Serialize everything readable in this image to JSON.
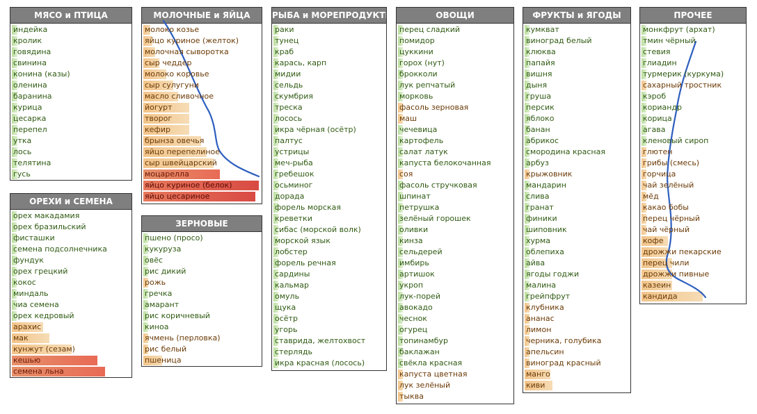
{
  "panels": [
    {
      "id": "meat",
      "title": "МЯСО и ПТИЦА",
      "items": [
        {
          "label": "индейка",
          "level": "g",
          "fill": 0.05
        },
        {
          "label": "кролик",
          "level": "g",
          "fill": 0.05
        },
        {
          "label": "говядина",
          "level": "g",
          "fill": 0.05
        },
        {
          "label": "свинина",
          "level": "g",
          "fill": 0.05
        },
        {
          "label": "конина (казы)",
          "level": "g",
          "fill": 0.05
        },
        {
          "label": "оленина",
          "level": "g",
          "fill": 0.05
        },
        {
          "label": "баранина",
          "level": "g",
          "fill": 0.05
        },
        {
          "label": "курица",
          "level": "g",
          "fill": 0.05
        },
        {
          "label": "цесарка",
          "level": "g",
          "fill": 0.05
        },
        {
          "label": "перепел",
          "level": "g",
          "fill": 0.05
        },
        {
          "label": "утка",
          "level": "g",
          "fill": 0.05
        },
        {
          "label": "лось",
          "level": "g",
          "fill": 0.05
        },
        {
          "label": "телятина",
          "level": "g",
          "fill": 0.05
        },
        {
          "label": "гусь",
          "level": "g",
          "fill": 0.05
        }
      ]
    },
    {
      "id": "nuts",
      "title": "ОРЕХИ и СЕМЕНА",
      "items": [
        {
          "label": "орех макадамия",
          "level": "g",
          "fill": 0.03
        },
        {
          "label": "орех бразильский",
          "level": "g",
          "fill": 0.03
        },
        {
          "label": "фисташки",
          "level": "g",
          "fill": 0.03
        },
        {
          "label": "семена подсолнечника",
          "level": "g",
          "fill": 0.03
        },
        {
          "label": "фундук",
          "level": "g",
          "fill": 0.03
        },
        {
          "label": "орех грецкий",
          "level": "g",
          "fill": 0.03
        },
        {
          "label": "кокос",
          "level": "g",
          "fill": 0.03
        },
        {
          "label": "миндаль",
          "level": "g",
          "fill": 0.03
        },
        {
          "label": "чиа семена",
          "level": "g",
          "fill": 0.03
        },
        {
          "label": "орех кедровый",
          "level": "g",
          "fill": 0.03
        },
        {
          "label": "арахис",
          "level": "y",
          "fill": 0.27
        },
        {
          "label": "мак",
          "level": "y",
          "fill": 0.32
        },
        {
          "label": "кунжут (сезам)",
          "level": "y",
          "fill": 0.51
        },
        {
          "label": "кешью",
          "level": "o",
          "fill": 0.73
        },
        {
          "label": "семена льна",
          "level": "o",
          "fill": 0.8
        }
      ]
    },
    {
      "id": "dairy",
      "title": "МОЛОЧНЫЕ и ЯЙЦА",
      "items": [
        {
          "label": "молоко козье",
          "level": "y",
          "fill": 0.06
        },
        {
          "label": "яйцо куриное (желток)",
          "level": "y",
          "fill": 0.08
        },
        {
          "label": "молочная сыворотка",
          "level": "y",
          "fill": 0.1
        },
        {
          "label": "сыр чеддер",
          "level": "y",
          "fill": 0.14
        },
        {
          "label": "молоко коровье",
          "level": "y",
          "fill": 0.2
        },
        {
          "label": "сыр сулугуни",
          "level": "y",
          "fill": 0.26
        },
        {
          "label": "масло сливочное",
          "level": "y",
          "fill": 0.3
        },
        {
          "label": "йогурт",
          "level": "y",
          "fill": 0.4
        },
        {
          "label": "творог",
          "level": "y",
          "fill": 0.4
        },
        {
          "label": "кефир",
          "level": "y",
          "fill": 0.4
        },
        {
          "label": "брынза овечья",
          "level": "y",
          "fill": 0.5
        },
        {
          "label": "яйцо перепелиное",
          "level": "y",
          "fill": 0.55
        },
        {
          "label": "сыр швейцарский",
          "level": "y",
          "fill": 0.61
        },
        {
          "label": "моцарелла",
          "level": "o",
          "fill": 0.66
        },
        {
          "label": "яйцо куриное (белок)",
          "level": "r",
          "fill": 1.0
        },
        {
          "label": "яйцо цесариное",
          "level": "r",
          "fill": 0.97
        }
      ]
    },
    {
      "id": "grains",
      "title": "ЗЕРНОВЫЕ",
      "items": [
        {
          "label": "пшено (просо)",
          "level": "g",
          "fill": 0.02
        },
        {
          "label": "кукуруза",
          "level": "g",
          "fill": 0.02
        },
        {
          "label": "овёс",
          "level": "g",
          "fill": 0.02
        },
        {
          "label": "рис дикий",
          "level": "g",
          "fill": 0.02
        },
        {
          "label": "рожь",
          "level": "y",
          "fill": 0.02
        },
        {
          "label": "гречка",
          "level": "g",
          "fill": 0.02
        },
        {
          "label": "амарант",
          "level": "g",
          "fill": 0.02
        },
        {
          "label": "рис коричневый",
          "level": "g",
          "fill": 0.02
        },
        {
          "label": "киноа",
          "level": "g",
          "fill": 0.02
        },
        {
          "label": "ячмень (перловка)",
          "level": "y",
          "fill": 0.02
        },
        {
          "label": "рис белый",
          "level": "y",
          "fill": 0.02
        },
        {
          "label": "пшеница",
          "level": "y",
          "fill": 0.16
        }
      ]
    },
    {
      "id": "fish",
      "title": "РЫБА и МОРЕПРОДУКТЫ",
      "items": [
        {
          "label": "раки",
          "level": "g",
          "fill": 0.02
        },
        {
          "label": "тунец",
          "level": "g",
          "fill": 0.02
        },
        {
          "label": "краб",
          "level": "g",
          "fill": 0.02
        },
        {
          "label": "карась, карп",
          "level": "g",
          "fill": 0.02
        },
        {
          "label": "мидии",
          "level": "g",
          "fill": 0.02
        },
        {
          "label": "сельдь",
          "level": "g",
          "fill": 0.02
        },
        {
          "label": "скумбрия",
          "level": "g",
          "fill": 0.02
        },
        {
          "label": "треска",
          "level": "g",
          "fill": 0.02
        },
        {
          "label": "лосось",
          "level": "g",
          "fill": 0.02
        },
        {
          "label": "икра чёрная (осётр)",
          "level": "g",
          "fill": 0.02
        },
        {
          "label": "палтус",
          "level": "g",
          "fill": 0.02
        },
        {
          "label": "устрицы",
          "level": "g",
          "fill": 0.02
        },
        {
          "label": "меч-рыба",
          "level": "g",
          "fill": 0.02
        },
        {
          "label": "гребешок",
          "level": "g",
          "fill": 0.02
        },
        {
          "label": "осьминог",
          "level": "g",
          "fill": 0.02
        },
        {
          "label": "дорада",
          "level": "g",
          "fill": 0.02
        },
        {
          "label": "форель морская",
          "level": "g",
          "fill": 0.02
        },
        {
          "label": "креветки",
          "level": "g",
          "fill": 0.02
        },
        {
          "label": "сибас (морской волк)",
          "level": "g",
          "fill": 0.02
        },
        {
          "label": "морской язык",
          "level": "g",
          "fill": 0.02
        },
        {
          "label": "лобстер",
          "level": "g",
          "fill": 0.02
        },
        {
          "label": "форель речная",
          "level": "g",
          "fill": 0.02
        },
        {
          "label": "сардины",
          "level": "g",
          "fill": 0.02
        },
        {
          "label": "кальмар",
          "level": "g",
          "fill": 0.02
        },
        {
          "label": "омуль",
          "level": "g",
          "fill": 0.02
        },
        {
          "label": "щука",
          "level": "g",
          "fill": 0.02
        },
        {
          "label": "осётр",
          "level": "g",
          "fill": 0.02
        },
        {
          "label": "угорь",
          "level": "g",
          "fill": 0.02
        },
        {
          "label": "ставрида, желтохвост",
          "level": "g",
          "fill": 0.02
        },
        {
          "label": "стерлядь",
          "level": "g",
          "fill": 0.02
        },
        {
          "label": "икра красная (лосось)",
          "level": "g",
          "fill": 0.02
        }
      ]
    },
    {
      "id": "veg",
      "title": "ОВОЩИ",
      "items": [
        {
          "label": "перец сладкий",
          "level": "g",
          "fill": 0.02
        },
        {
          "label": "помидор",
          "level": "g",
          "fill": 0.02
        },
        {
          "label": "цуккини",
          "level": "g",
          "fill": 0.02
        },
        {
          "label": "горох (нут)",
          "level": "g",
          "fill": 0.02
        },
        {
          "label": "брокколи",
          "level": "g",
          "fill": 0.02
        },
        {
          "label": "лук репчатый",
          "level": "g",
          "fill": 0.02
        },
        {
          "label": "морковь",
          "level": "g",
          "fill": 0.02
        },
        {
          "label": "фасоль зерновая",
          "level": "y",
          "fill": 0.02
        },
        {
          "label": "маш",
          "level": "y",
          "fill": 0.02
        },
        {
          "label": "чечевица",
          "level": "g",
          "fill": 0.02
        },
        {
          "label": "картофель",
          "level": "g",
          "fill": 0.02
        },
        {
          "label": "салат латук",
          "level": "g",
          "fill": 0.02
        },
        {
          "label": "капуста белокочанная",
          "level": "g",
          "fill": 0.02
        },
        {
          "label": "соя",
          "level": "y",
          "fill": 0.02
        },
        {
          "label": "фасоль стручковая",
          "level": "g",
          "fill": 0.02
        },
        {
          "label": "шпинат",
          "level": "g",
          "fill": 0.02
        },
        {
          "label": "петрушка",
          "level": "g",
          "fill": 0.02
        },
        {
          "label": "зелёный горошек",
          "level": "g",
          "fill": 0.02
        },
        {
          "label": "оливки",
          "level": "g",
          "fill": 0.02
        },
        {
          "label": "кинза",
          "level": "g",
          "fill": 0.02
        },
        {
          "label": "сельдерей",
          "level": "g",
          "fill": 0.02
        },
        {
          "label": "имбирь",
          "level": "g",
          "fill": 0.02
        },
        {
          "label": "артишок",
          "level": "g",
          "fill": 0.02
        },
        {
          "label": "укроп",
          "level": "g",
          "fill": 0.02
        },
        {
          "label": "лук-порей",
          "level": "g",
          "fill": 0.02
        },
        {
          "label": "авокадо",
          "level": "g",
          "fill": 0.02
        },
        {
          "label": "чеснок",
          "level": "g",
          "fill": 0.02
        },
        {
          "label": "огурец",
          "level": "g",
          "fill": 0.02
        },
        {
          "label": "топинамбур",
          "level": "g",
          "fill": 0.02
        },
        {
          "label": "баклажан",
          "level": "g",
          "fill": 0.02
        },
        {
          "label": "свёкла красная",
          "level": "g",
          "fill": 0.02
        },
        {
          "label": "капуста цветная",
          "level": "y",
          "fill": 0.02
        },
        {
          "label": "лук зелёный",
          "level": "y",
          "fill": 0.02
        },
        {
          "label": "тыква",
          "level": "y",
          "fill": 0.02
        }
      ]
    },
    {
      "id": "fruit",
      "title": "ФРУКТЫ и ЯГОДЫ",
      "items": [
        {
          "label": "кумкват",
          "level": "g",
          "fill": 0.02
        },
        {
          "label": "виноград белый",
          "level": "g",
          "fill": 0.02
        },
        {
          "label": "клюква",
          "level": "g",
          "fill": 0.02
        },
        {
          "label": "папайя",
          "level": "g",
          "fill": 0.02
        },
        {
          "label": "вишня",
          "level": "g",
          "fill": 0.02
        },
        {
          "label": "дыня",
          "level": "g",
          "fill": 0.02
        },
        {
          "label": "груша",
          "level": "g",
          "fill": 0.02
        },
        {
          "label": "персик",
          "level": "g",
          "fill": 0.02
        },
        {
          "label": "яблоко",
          "level": "g",
          "fill": 0.02
        },
        {
          "label": "банан",
          "level": "g",
          "fill": 0.02
        },
        {
          "label": "абрикос",
          "level": "g",
          "fill": 0.02
        },
        {
          "label": "смородина красная",
          "level": "g",
          "fill": 0.02
        },
        {
          "label": "арбуз",
          "level": "g",
          "fill": 0.02
        },
        {
          "label": "крыжовник",
          "level": "y",
          "fill": 0.02
        },
        {
          "label": "мандарин",
          "level": "g",
          "fill": 0.02
        },
        {
          "label": "слива",
          "level": "g",
          "fill": 0.02
        },
        {
          "label": "гранат",
          "level": "g",
          "fill": 0.02
        },
        {
          "label": "финики",
          "level": "g",
          "fill": 0.02
        },
        {
          "label": "шиповник",
          "level": "g",
          "fill": 0.02
        },
        {
          "label": "хурма",
          "level": "g",
          "fill": 0.02
        },
        {
          "label": "облепиха",
          "level": "g",
          "fill": 0.02
        },
        {
          "label": "айва",
          "level": "g",
          "fill": 0.02
        },
        {
          "label": "ягоды годжи",
          "level": "g",
          "fill": 0.02
        },
        {
          "label": "малина",
          "level": "g",
          "fill": 0.02
        },
        {
          "label": "грейпфрут",
          "level": "g",
          "fill": 0.02
        },
        {
          "label": "клубника",
          "level": "y",
          "fill": 0.02
        },
        {
          "label": "ананас",
          "level": "y",
          "fill": 0.02
        },
        {
          "label": "лимон",
          "level": "y",
          "fill": 0.02
        },
        {
          "label": "черника, голубика",
          "level": "y",
          "fill": 0.02
        },
        {
          "label": "апельсин",
          "level": "y",
          "fill": 0.02
        },
        {
          "label": "виноград красный",
          "level": "y",
          "fill": 0.02
        },
        {
          "label": "манго",
          "level": "y",
          "fill": 0.25
        },
        {
          "label": "киви",
          "level": "y",
          "fill": 0.27
        }
      ]
    },
    {
      "id": "other",
      "title": "ПРОЧЕЕ",
      "items": [
        {
          "label": "монкфрут (архат)",
          "level": "g",
          "fill": 0.02
        },
        {
          "label": "тмин чёрный",
          "level": "g",
          "fill": 0.02
        },
        {
          "label": "стевия",
          "level": "g",
          "fill": 0.02
        },
        {
          "label": "глиадин",
          "level": "g",
          "fill": 0.02
        },
        {
          "label": "турмерик (куркума)",
          "level": "g",
          "fill": 0.02
        },
        {
          "label": "сахарный тростник",
          "level": "y",
          "fill": 0.02
        },
        {
          "label": "кэроб",
          "level": "g",
          "fill": 0.02
        },
        {
          "label": "кориандр",
          "level": "g",
          "fill": 0.02
        },
        {
          "label": "корица",
          "level": "g",
          "fill": 0.02
        },
        {
          "label": "агава",
          "level": "g",
          "fill": 0.02
        },
        {
          "label": "кленовый сироп",
          "level": "g",
          "fill": 0.02
        },
        {
          "label": "глютен",
          "level": "y",
          "fill": 0.02
        },
        {
          "label": "грибы (смесь)",
          "level": "y",
          "fill": 0.02
        },
        {
          "label": "горчица",
          "level": "y",
          "fill": 0.02
        },
        {
          "label": "чай зелёный",
          "level": "y",
          "fill": 0.02
        },
        {
          "label": "мёд",
          "level": "y",
          "fill": 0.02
        },
        {
          "label": "какао бобы",
          "level": "y",
          "fill": 0.02
        },
        {
          "label": "перец чёрный",
          "level": "y",
          "fill": 0.02
        },
        {
          "label": "чай чёрный",
          "level": "y",
          "fill": 0.02
        },
        {
          "label": "кофе",
          "level": "y",
          "fill": 0.26
        },
        {
          "label": "дрожжи пекарские",
          "level": "y",
          "fill": 0.26
        },
        {
          "label": "перец чили",
          "level": "y",
          "fill": 0.3
        },
        {
          "label": "дрожжи пивные",
          "level": "y",
          "fill": 0.3
        },
        {
          "label": "казеин",
          "level": "y",
          "fill": 0.3
        },
        {
          "label": "кандида",
          "level": "y",
          "fill": 0.6
        }
      ]
    }
  ],
  "colors": {
    "header_bg": "#7f7f7f",
    "header_text": "#ffffff",
    "green_bar": "#b9dd9b",
    "yellow_bar": "#f2c48a",
    "orange_bar": "#e6906a",
    "red_bar": "#d84a43",
    "curve": "#2e5fbf"
  }
}
